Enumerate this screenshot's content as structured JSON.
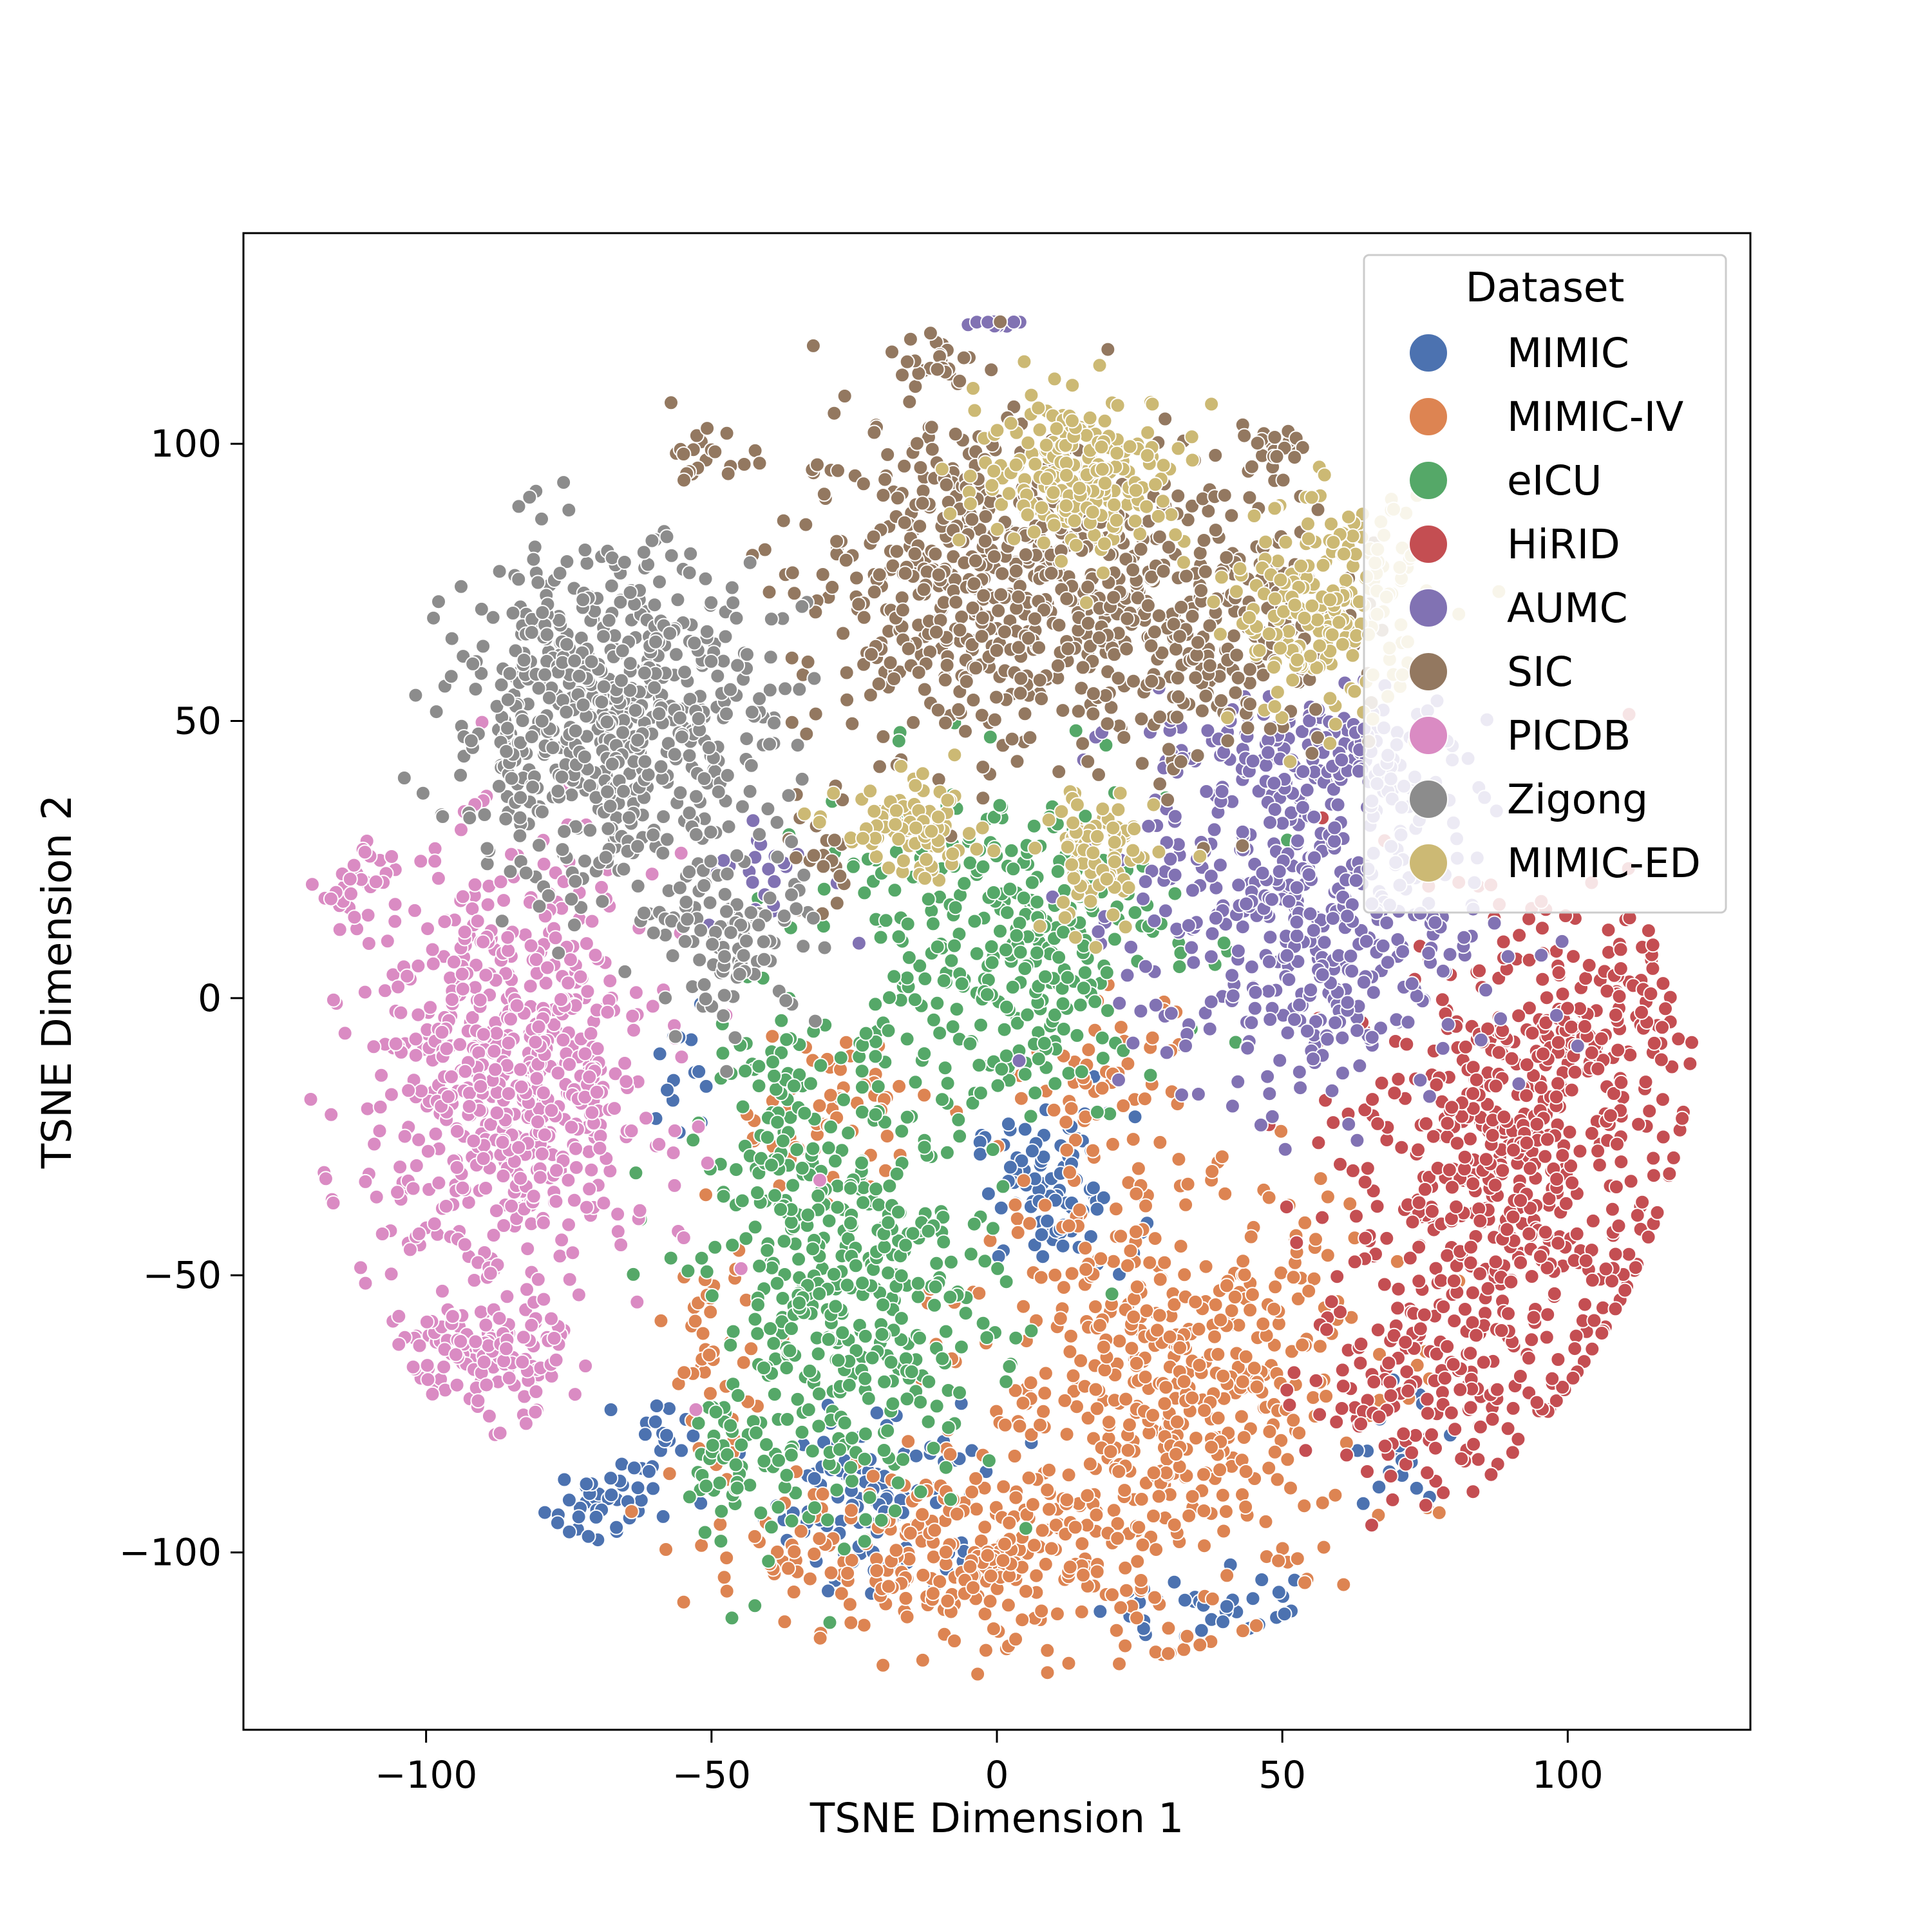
{
  "chart_data": {
    "type": "scatter",
    "title": "",
    "xlabel": "TSNE Dimension 1",
    "ylabel": "TSNE Dimension 2",
    "xlim": [
      -132,
      132
    ],
    "ylim": [
      -132,
      138
    ],
    "xticks": [
      -100,
      -50,
      0,
      50,
      100
    ],
    "yticks": [
      -100,
      -50,
      0,
      50,
      100
    ],
    "xtick_labels": [
      "−100",
      "−50",
      "0",
      "50",
      "100"
    ],
    "ytick_labels": [
      "−100",
      "−50",
      "0",
      "50",
      "100"
    ],
    "grid": false,
    "legend": {
      "title": "Dataset",
      "placement": "top-right"
    },
    "series": [
      {
        "name": "MIMIC",
        "color": "#4c72b0",
        "clusters": [
          {
            "center": [
              10,
              -35
            ],
            "spread": [
              10,
              10
            ],
            "count": 90
          },
          {
            "center": [
              -20,
              -90
            ],
            "spread": [
              14,
              12
            ],
            "count": 110
          },
          {
            "center": [
              35,
              -110
            ],
            "spread": [
              12,
              6
            ],
            "count": 35
          },
          {
            "center": [
              -70,
              -92
            ],
            "spread": [
              7,
              5
            ],
            "count": 35
          },
          {
            "center": [
              -60,
              -80
            ],
            "spread": [
              4,
              5
            ],
            "count": 20
          },
          {
            "center": [
              -55,
              -15
            ],
            "spread": [
              4,
              10
            ],
            "count": 15
          },
          {
            "center": [
              70,
              -80
            ],
            "spread": [
              6,
              8
            ],
            "count": 20
          }
        ]
      },
      {
        "name": "MIMIC-IV",
        "color": "#dd8452",
        "clusters": [
          {
            "center": [
              30,
              -70
            ],
            "spread": [
              25,
              28
            ],
            "count": 520
          },
          {
            "center": [
              -5,
              -100
            ],
            "spread": [
              28,
              12
            ],
            "count": 280
          },
          {
            "center": [
              -30,
              -20
            ],
            "spread": [
              12,
              10
            ],
            "count": 60
          },
          {
            "center": [
              20,
              -15
            ],
            "spread": [
              10,
              10
            ],
            "count": 45
          },
          {
            "center": [
              -50,
              -65
            ],
            "spread": [
              5,
              15
            ],
            "count": 45
          }
        ]
      },
      {
        "name": "eICU",
        "color": "#55a868",
        "clusters": [
          {
            "center": [
              -25,
              -55
            ],
            "spread": [
              18,
              28
            ],
            "count": 420
          },
          {
            "center": [
              0,
              10
            ],
            "spread": [
              22,
              22
            ],
            "count": 340
          },
          {
            "center": [
              -40,
              -20
            ],
            "spread": [
              8,
              15
            ],
            "count": 50
          },
          {
            "center": [
              -45,
              -85
            ],
            "spread": [
              6,
              14
            ],
            "count": 45
          }
        ]
      },
      {
        "name": "HiRID",
        "color": "#c44e52",
        "clusters": [
          {
            "center": [
              90,
              -30
            ],
            "spread": [
              20,
              28
            ],
            "count": 560
          },
          {
            "center": [
              75,
              -70
            ],
            "spread": [
              15,
              14
            ],
            "count": 140
          },
          {
            "center": [
              105,
              0
            ],
            "spread": [
              10,
              12
            ],
            "count": 80
          }
        ]
      },
      {
        "name": "AUMC",
        "color": "#8172b3",
        "clusters": [
          {
            "center": [
              55,
              15
            ],
            "spread": [
              22,
              25
            ],
            "count": 480
          },
          {
            "center": [
              55,
              45
            ],
            "spread": [
              20,
              8
            ],
            "count": 110
          },
          {
            "center": [
              0,
              122
            ],
            "spread": [
              4,
              2
            ],
            "count": 12
          },
          {
            "center": [
              -40,
              22
            ],
            "spread": [
              8,
              8
            ],
            "count": 25
          }
        ]
      },
      {
        "name": "SIC",
        "color": "#937860",
        "clusters": [
          {
            "center": [
              -5,
              75
            ],
            "spread": [
              22,
              22
            ],
            "count": 520
          },
          {
            "center": [
              35,
              70
            ],
            "spread": [
              18,
              20
            ],
            "count": 300
          },
          {
            "center": [
              -10,
              115
            ],
            "spread": [
              5,
              4
            ],
            "count": 25
          },
          {
            "center": [
              -50,
              97
            ],
            "spread": [
              5,
              4
            ],
            "count": 20
          },
          {
            "center": [
              48,
              100
            ],
            "spread": [
              5,
              3
            ],
            "count": 20
          },
          {
            "center": [
              -30,
              25
            ],
            "spread": [
              5,
              8
            ],
            "count": 20
          }
        ]
      },
      {
        "name": "PICDB",
        "color": "#da8bc3",
        "clusters": [
          {
            "center": [
              -85,
              -15
            ],
            "spread": [
              18,
              28
            ],
            "count": 680
          },
          {
            "center": [
              -90,
              -65
            ],
            "spread": [
              10,
              8
            ],
            "count": 130
          },
          {
            "center": [
              -112,
              20
            ],
            "spread": [
              5,
              6
            ],
            "count": 30
          }
        ]
      },
      {
        "name": "Zigong",
        "color": "#8c8c8c",
        "clusters": [
          {
            "center": [
              -68,
              50
            ],
            "spread": [
              20,
              22
            ],
            "count": 650
          },
          {
            "center": [
              -45,
              10
            ],
            "spread": [
              10,
              10
            ],
            "count": 90
          }
        ]
      },
      {
        "name": "MIMIC-ED",
        "color": "#ccb974",
        "clusters": [
          {
            "center": [
              15,
              95
            ],
            "spread": [
              13,
              10
            ],
            "count": 230
          },
          {
            "center": [
              58,
              70
            ],
            "spread": [
              12,
              14
            ],
            "count": 220
          },
          {
            "center": [
              -15,
              30
            ],
            "spread": [
              9,
              6
            ],
            "count": 90
          },
          {
            "center": [
              18,
              25
            ],
            "spread": [
              7,
              10
            ],
            "count": 90
          }
        ]
      }
    ]
  }
}
